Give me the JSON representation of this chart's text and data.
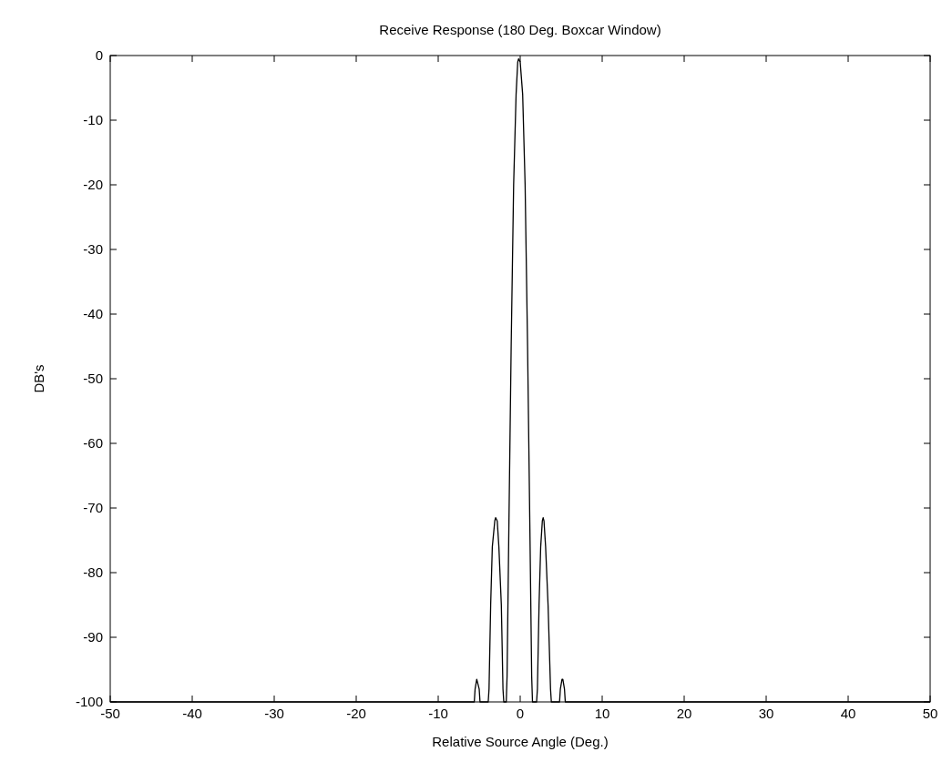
{
  "chart_data": {
    "type": "line",
    "title": "Receive Response (180 Deg. Boxcar Window)",
    "xlabel": "Relative Source Angle (Deg.)",
    "ylabel": "DB's",
    "xlim": [
      -50,
      50
    ],
    "xticks": [
      -50,
      -40,
      -30,
      -20,
      -10,
      0,
      10,
      20,
      30,
      40,
      50
    ],
    "ylim": [
      -100,
      0
    ],
    "yticks": [
      -100,
      -90,
      -80,
      -70,
      -60,
      -50,
      -40,
      -30,
      -20,
      -10,
      0
    ],
    "series": [
      {
        "color": "#000000",
        "x": [
          -50,
          -5.6,
          -5.5,
          -5.3,
          -5.2,
          -5.0,
          -4.9,
          -3.9,
          -3.8,
          -3.6,
          -3.4,
          -3.1,
          -3.0,
          -2.8,
          -2.6,
          -2.3,
          -2.1,
          -2.0,
          -1.7,
          -1.6,
          -1.4,
          -1.1,
          -0.8,
          -0.5,
          -0.3,
          -0.2,
          0.0,
          0.3,
          0.6,
          0.9,
          1.2,
          1.4,
          1.5,
          2.0,
          2.1,
          2.3,
          2.5,
          2.7,
          2.8,
          2.9,
          3.1,
          3.4,
          3.7,
          3.8,
          4.8,
          4.9,
          5.1,
          5.2,
          5.4,
          5.5,
          50
        ],
        "values": [
          -100,
          -100,
          -98,
          -96.5,
          -97,
          -98,
          -100,
          -100,
          -98,
          -85,
          -76,
          -72,
          -71.5,
          -72,
          -76,
          -85,
          -98,
          -100,
          -100,
          -96,
          -75,
          -45,
          -20,
          -6,
          -1,
          -0.5,
          -1,
          -6,
          -20,
          -45,
          -75,
          -96,
          -100,
          -100,
          -98,
          -85,
          -76,
          -72,
          -71.5,
          -72,
          -76,
          -85,
          -98,
          -100,
          -100,
          -98,
          -96.5,
          -96.5,
          -98,
          -100,
          -100
        ]
      }
    ]
  }
}
